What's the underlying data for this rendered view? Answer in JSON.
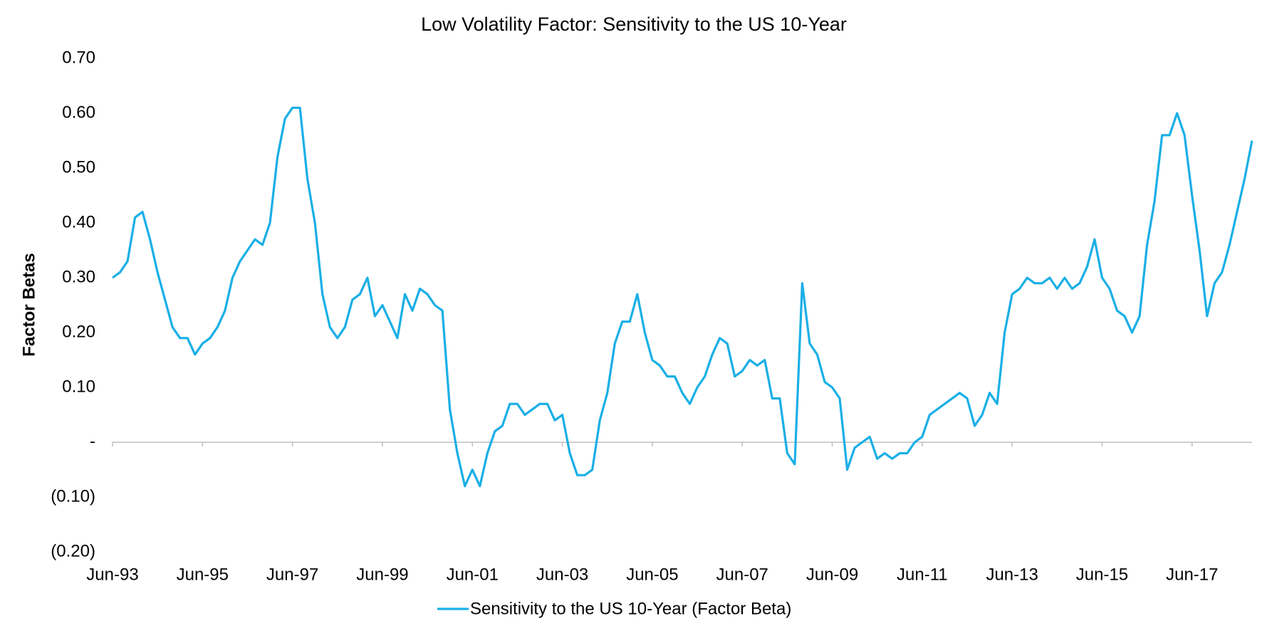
{
  "chart_data": {
    "type": "line",
    "title": "Low Volatility Factor: Sensitivity to the US 10-Year",
    "y_label": "Factor Betas",
    "categories": [
      "Jun-93",
      null,
      null,
      null,
      null,
      null,
      null,
      null,
      null,
      null,
      null,
      null,
      "Jun-95",
      null,
      null,
      null,
      null,
      null,
      null,
      null,
      null,
      null,
      null,
      null,
      "Jun-97",
      null,
      null,
      null,
      null,
      null,
      null,
      null,
      null,
      null,
      null,
      null,
      "Jun-99",
      null,
      null,
      null,
      null,
      null,
      null,
      null,
      null,
      null,
      null,
      null,
      "Jun-01",
      null,
      null,
      null,
      null,
      null,
      null,
      null,
      null,
      null,
      null,
      null,
      "Jun-03",
      null,
      null,
      null,
      null,
      null,
      null,
      null,
      null,
      null,
      null,
      null,
      "Jun-05",
      null,
      null,
      null,
      null,
      null,
      null,
      null,
      null,
      null,
      null,
      null,
      "Jun-07",
      null,
      null,
      null,
      null,
      null,
      null,
      null,
      null,
      null,
      null,
      null,
      "Jun-09",
      null,
      null,
      null,
      null,
      null,
      null,
      null,
      null,
      null,
      null,
      null,
      "Jun-11",
      null,
      null,
      null,
      null,
      null,
      null,
      null,
      null,
      null,
      null,
      null,
      "Jun-13",
      null,
      null,
      null,
      null,
      null,
      null,
      null,
      null,
      null,
      null,
      null,
      "Jun-15",
      null,
      null,
      null,
      null,
      null,
      null,
      null,
      null,
      null,
      null,
      null,
      "Jun-17",
      null,
      null,
      null,
      null,
      null,
      null,
      null,
      null
    ],
    "series": [
      {
        "name": "Sensitivity to the US 10-Year (Factor Beta)",
        "color": "#1aafe6",
        "values": [
          0.3,
          0.31,
          0.33,
          0.41,
          0.42,
          0.37,
          0.31,
          0.26,
          0.21,
          0.19,
          0.19,
          0.16,
          0.18,
          0.19,
          0.21,
          0.24,
          0.3,
          0.33,
          0.35,
          0.37,
          0.36,
          0.4,
          0.52,
          0.59,
          0.61,
          0.61,
          0.48,
          0.4,
          0.27,
          0.21,
          0.19,
          0.21,
          0.26,
          0.27,
          0.3,
          0.23,
          0.25,
          0.22,
          0.19,
          0.27,
          0.24,
          0.28,
          0.27,
          0.25,
          0.24,
          0.06,
          -0.02,
          -0.08,
          -0.05,
          -0.08,
          -0.02,
          0.02,
          0.03,
          0.07,
          0.07,
          0.05,
          0.06,
          0.07,
          0.07,
          0.04,
          0.05,
          -0.02,
          -0.06,
          -0.06,
          -0.05,
          0.04,
          0.09,
          0.18,
          0.22,
          0.22,
          0.27,
          0.2,
          0.15,
          0.14,
          0.12,
          0.12,
          0.09,
          0.07,
          0.1,
          0.12,
          0.16,
          0.19,
          0.18,
          0.12,
          0.13,
          0.15,
          0.14,
          0.15,
          0.08,
          0.08,
          -0.02,
          -0.04,
          0.29,
          0.18,
          0.16,
          0.11,
          0.1,
          0.08,
          -0.05,
          -0.01,
          0.0,
          0.01,
          -0.03,
          -0.02,
          -0.03,
          -0.02,
          -0.02,
          0.0,
          0.01,
          0.05,
          0.06,
          0.07,
          0.08,
          0.09,
          0.08,
          0.03,
          0.05,
          0.09,
          0.07,
          0.2,
          0.27,
          0.28,
          0.3,
          0.29,
          0.29,
          0.3,
          0.28,
          0.3,
          0.28,
          0.29,
          0.32,
          0.37,
          0.3,
          0.28,
          0.24,
          0.23,
          0.2,
          0.23,
          0.36,
          0.44,
          0.56,
          0.56,
          0.6,
          0.56,
          0.45,
          0.35,
          0.23,
          0.29,
          0.31,
          0.36,
          0.42,
          0.48,
          0.55
        ]
      }
    ],
    "ylim": [
      -0.2,
      0.7
    ],
    "yticks": [
      {
        "value": 0.7,
        "label": "0.70"
      },
      {
        "value": 0.6,
        "label": "0.60"
      },
      {
        "value": 0.5,
        "label": "0.50"
      },
      {
        "value": 0.4,
        "label": "0.40"
      },
      {
        "value": 0.3,
        "label": "0.30"
      },
      {
        "value": 0.2,
        "label": "0.20"
      },
      {
        "value": 0.1,
        "label": "0.10"
      },
      {
        "value": 0,
        "label": "-"
      },
      {
        "value": -0.1,
        "label": "(0.10)"
      },
      {
        "value": -0.2,
        "label": "(0.20)"
      }
    ],
    "legend": "bottom"
  }
}
